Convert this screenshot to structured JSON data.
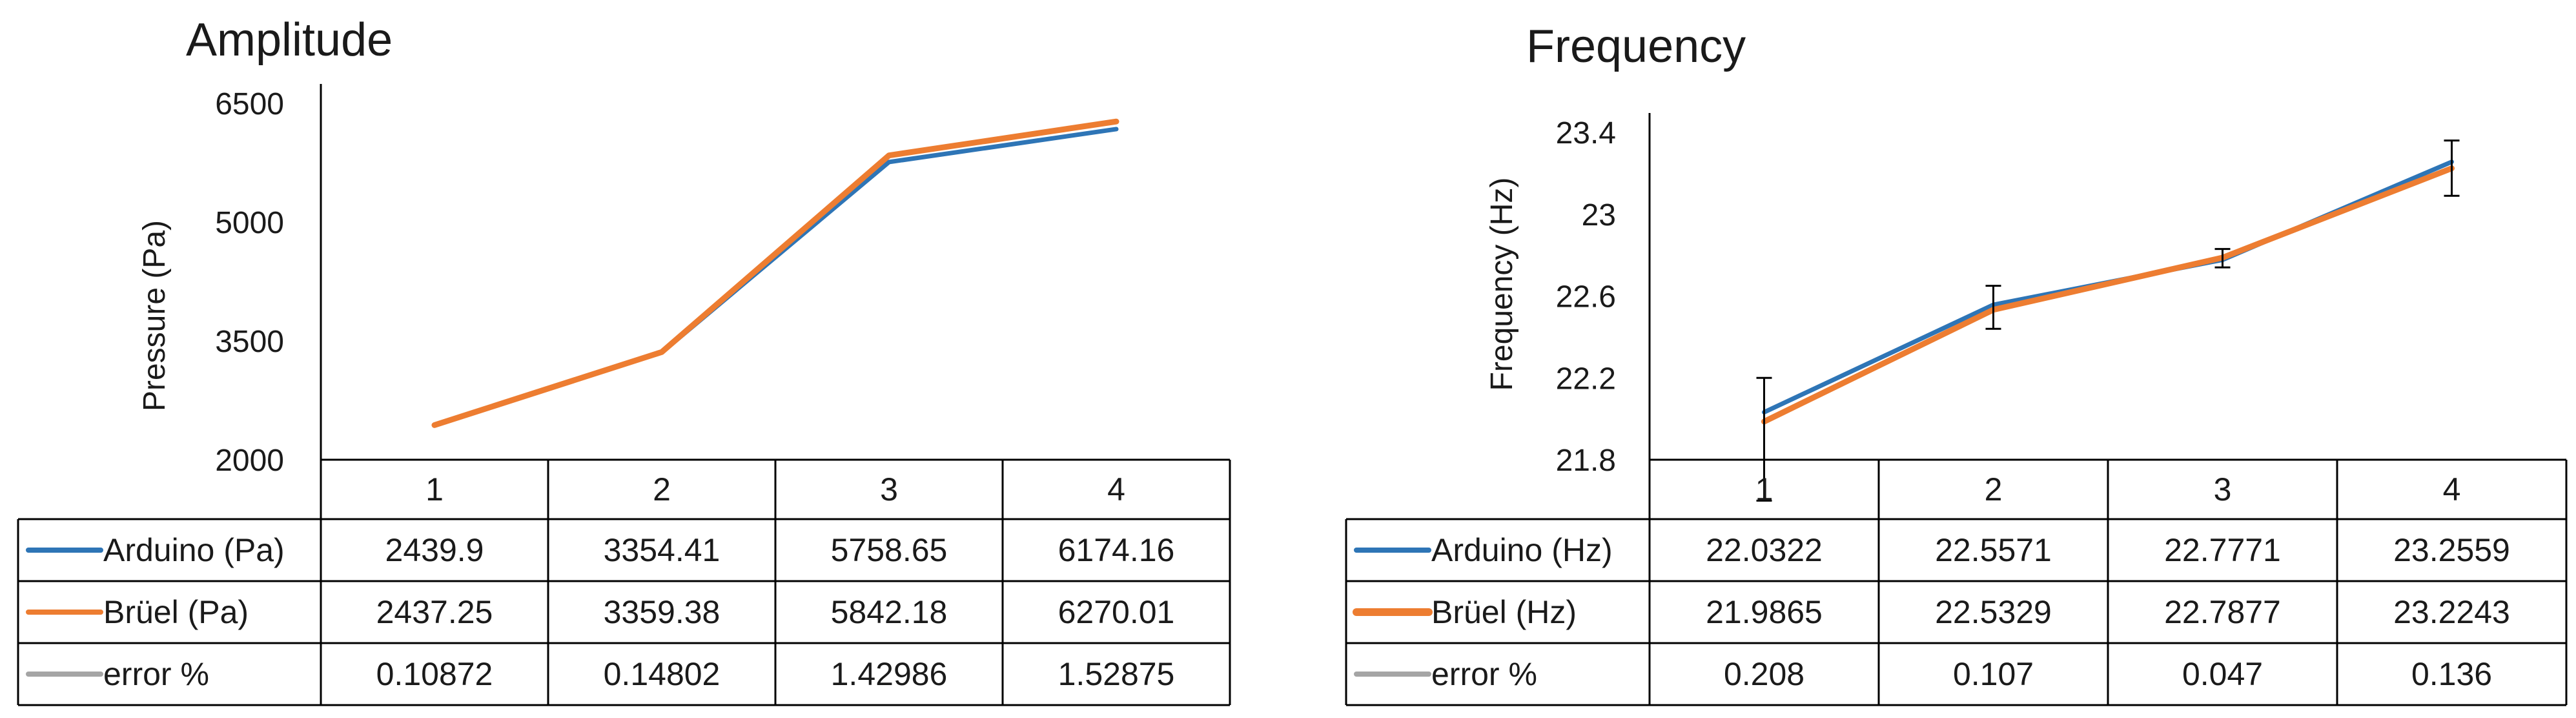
{
  "chart_data": [
    {
      "type": "line",
      "title": "Amplitude",
      "ylabel": "Pressure (Pa)",
      "ylim": [
        2000,
        6500
      ],
      "yticks": [
        "6500",
        "5000",
        "3500",
        "2000"
      ],
      "categories": [
        "1",
        "2",
        "3",
        "4"
      ],
      "series": [
        {
          "name": "Arduino (Pa)",
          "color": "#2e75b6",
          "values": [
            2439.9,
            3354.41,
            5758.65,
            6174.16
          ],
          "cells": [
            "2439.9",
            "3354.41",
            "5758.65",
            "6174.16"
          ]
        },
        {
          "name": "Brüel (Pa)",
          "color": "#ed7d31",
          "values": [
            2437.25,
            3359.38,
            5842.18,
            6270.01
          ],
          "cells": [
            "2437.25",
            "3359.38",
            "5842.18",
            "6270.01"
          ]
        },
        {
          "name": "error %",
          "color": "#a5a5a5",
          "values": [
            0.10872,
            0.14802,
            1.42986,
            1.52875
          ],
          "cells": [
            "0.10872",
            "0.14802",
            "1.42986",
            "1.52875"
          ]
        }
      ],
      "grid": false,
      "legend": "data-table"
    },
    {
      "type": "line",
      "title": "Frequency",
      "ylabel": "Frequency (Hz)",
      "ylim": [
        21.8,
        23.4
      ],
      "yticks": [
        "23.4",
        "23",
        "22.6",
        "22.2",
        "21.8"
      ],
      "categories": [
        "1",
        "2",
        "3",
        "4"
      ],
      "series": [
        {
          "name": "Arduino (Hz)",
          "color": "#2e75b6",
          "values": [
            22.0322,
            22.5571,
            22.7771,
            23.2559
          ],
          "cells": [
            "22.0322",
            "22.5571",
            "22.7771",
            "23.2559"
          ]
        },
        {
          "name": "Brüel (Hz)",
          "color": "#ed7d31",
          "values": [
            21.9865,
            22.5329,
            22.7877,
            23.2243
          ],
          "cells": [
            "21.9865",
            "22.5329",
            "22.7877",
            "23.2243"
          ]
        },
        {
          "name": "error %",
          "color": "#a5a5a5",
          "values": [
            0.208,
            0.107,
            0.047,
            0.136
          ],
          "cells": [
            "0.208",
            "0.107",
            "0.047",
            "0.136"
          ]
        }
      ],
      "error_bars": {
        "series": "Arduino (Hz)",
        "low": [
          21.6,
          22.44,
          22.74,
          23.09
        ],
        "high": [
          22.2,
          22.65,
          22.83,
          23.36
        ]
      },
      "grid": false,
      "legend": "data-table"
    }
  ]
}
